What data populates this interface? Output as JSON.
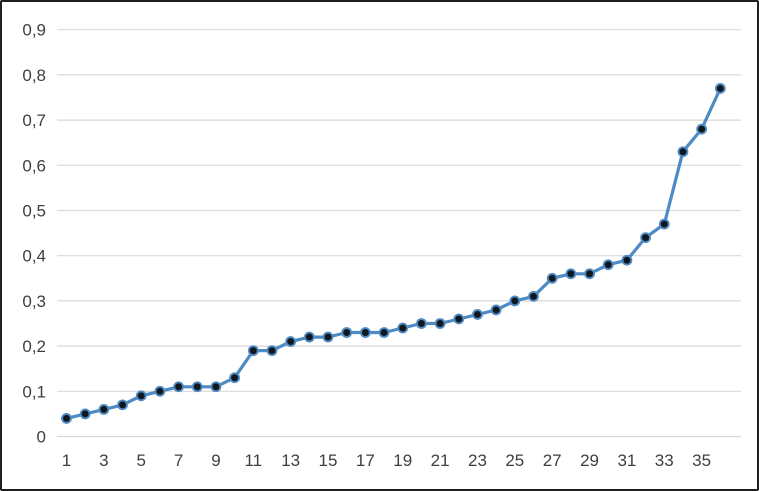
{
  "chart_data": {
    "type": "line",
    "title": "",
    "xlabel": "",
    "ylabel": "",
    "x": [
      1,
      2,
      3,
      4,
      5,
      6,
      7,
      8,
      9,
      10,
      11,
      12,
      13,
      14,
      15,
      16,
      17,
      18,
      19,
      20,
      21,
      22,
      23,
      24,
      25,
      26,
      27,
      28,
      29,
      30,
      31,
      32,
      33,
      34,
      35,
      36
    ],
    "values": [
      0.04,
      0.05,
      0.06,
      0.07,
      0.09,
      0.1,
      0.11,
      0.11,
      0.11,
      0.13,
      0.19,
      0.19,
      0.21,
      0.22,
      0.22,
      0.23,
      0.23,
      0.23,
      0.24,
      0.25,
      0.25,
      0.26,
      0.27,
      0.28,
      0.3,
      0.31,
      0.35,
      0.36,
      0.36,
      0.38,
      0.39,
      0.44,
      0.47,
      0.63,
      0.68,
      0.77
    ],
    "ylim": [
      0,
      0.9
    ],
    "y_tick_step": 0.1,
    "y_tick_labels": [
      "0",
      "0,1",
      "0,2",
      "0,3",
      "0,4",
      "0,5",
      "0,6",
      "0,7",
      "0,8",
      "0,9"
    ],
    "x_tick_values": [
      1,
      3,
      5,
      7,
      9,
      11,
      13,
      15,
      17,
      19,
      21,
      23,
      25,
      27,
      29,
      31,
      33,
      35
    ],
    "x_tick_labels": [
      "1",
      "3",
      "5",
      "7",
      "9",
      "11",
      "13",
      "15",
      "17",
      "19",
      "21",
      "23",
      "25",
      "27",
      "29",
      "31",
      "33",
      "35"
    ],
    "decimal_separator": ",",
    "grid": true,
    "legend": false,
    "colors": {
      "line": "#4e8ac4",
      "marker_core": "#10171d",
      "marker_ring": "#4e8ac4",
      "gridline": "#d9d9d9",
      "tick_text": "#3f3f3f",
      "frame_border": "#1f1f1f",
      "background": "#ffffff"
    }
  }
}
